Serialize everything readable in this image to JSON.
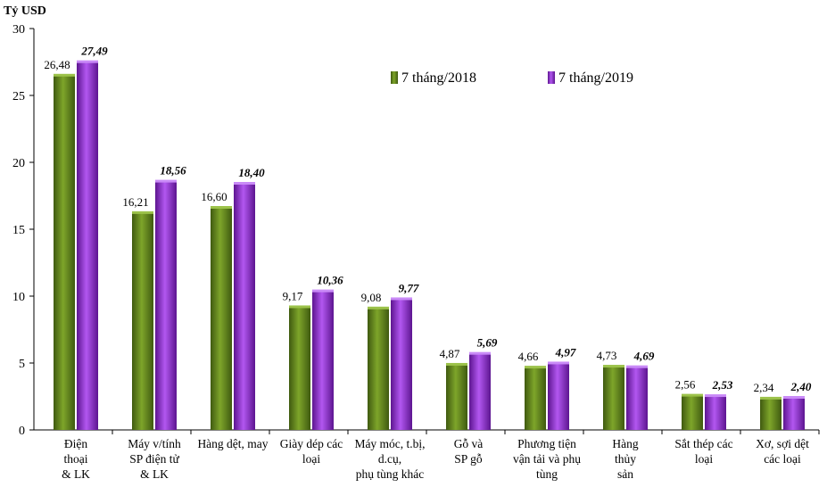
{
  "chart_data": {
    "type": "bar",
    "ylabel": "Tỷ USD",
    "ylim": [
      0,
      30
    ],
    "yticks": [
      "0",
      "5",
      "10",
      "15",
      "20",
      "25",
      "30"
    ],
    "categories": [
      [
        "Điện",
        "thoại",
        "& LK"
      ],
      [
        "Máy v/tính",
        "SP điện tử",
        "& LK"
      ],
      [
        "Hàng dệt, may"
      ],
      [
        "Giày dép các",
        "loại"
      ],
      [
        "Máy móc, t.bị,",
        "d.cụ,",
        "phụ tùng khác"
      ],
      [
        "Gỗ và",
        "SP gỗ"
      ],
      [
        "Phương tiện",
        "vận tải và phụ",
        "tùng"
      ],
      [
        "Hàng",
        "thủy",
        "sản"
      ],
      [
        "Sắt thép các",
        "loại"
      ],
      [
        "Xơ, sợi dệt",
        "các loại"
      ]
    ],
    "series": [
      {
        "name": "7 tháng/2018",
        "color": "#6b8e23",
        "values": [
          26.48,
          16.21,
          16.6,
          9.17,
          9.08,
          4.87,
          4.66,
          4.73,
          2.56,
          2.34
        ],
        "labels": [
          "26,48",
          "16,21",
          "16,60",
          "9,17",
          "9,08",
          "4,87",
          "4,66",
          "4,73",
          "2,56",
          "2,34"
        ]
      },
      {
        "name": "7 tháng/2019",
        "color": "#9b30d9",
        "values": [
          27.49,
          18.56,
          18.4,
          10.36,
          9.77,
          5.69,
          4.97,
          4.69,
          2.53,
          2.4
        ],
        "labels": [
          "27,49",
          "18,56",
          "18,40",
          "10,36",
          "9,77",
          "5,69",
          "4,97",
          "4,69",
          "2,53",
          "2,40"
        ]
      }
    ],
    "legend": "top-right",
    "grid": false
  }
}
